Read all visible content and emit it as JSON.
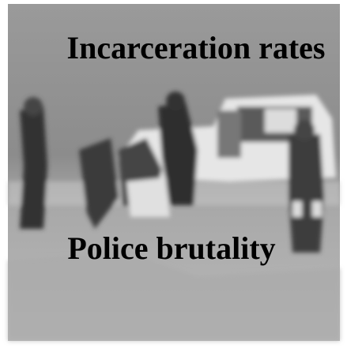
{
  "captions": [
    "Incarceration rates",
    "Police brutality"
  ]
}
